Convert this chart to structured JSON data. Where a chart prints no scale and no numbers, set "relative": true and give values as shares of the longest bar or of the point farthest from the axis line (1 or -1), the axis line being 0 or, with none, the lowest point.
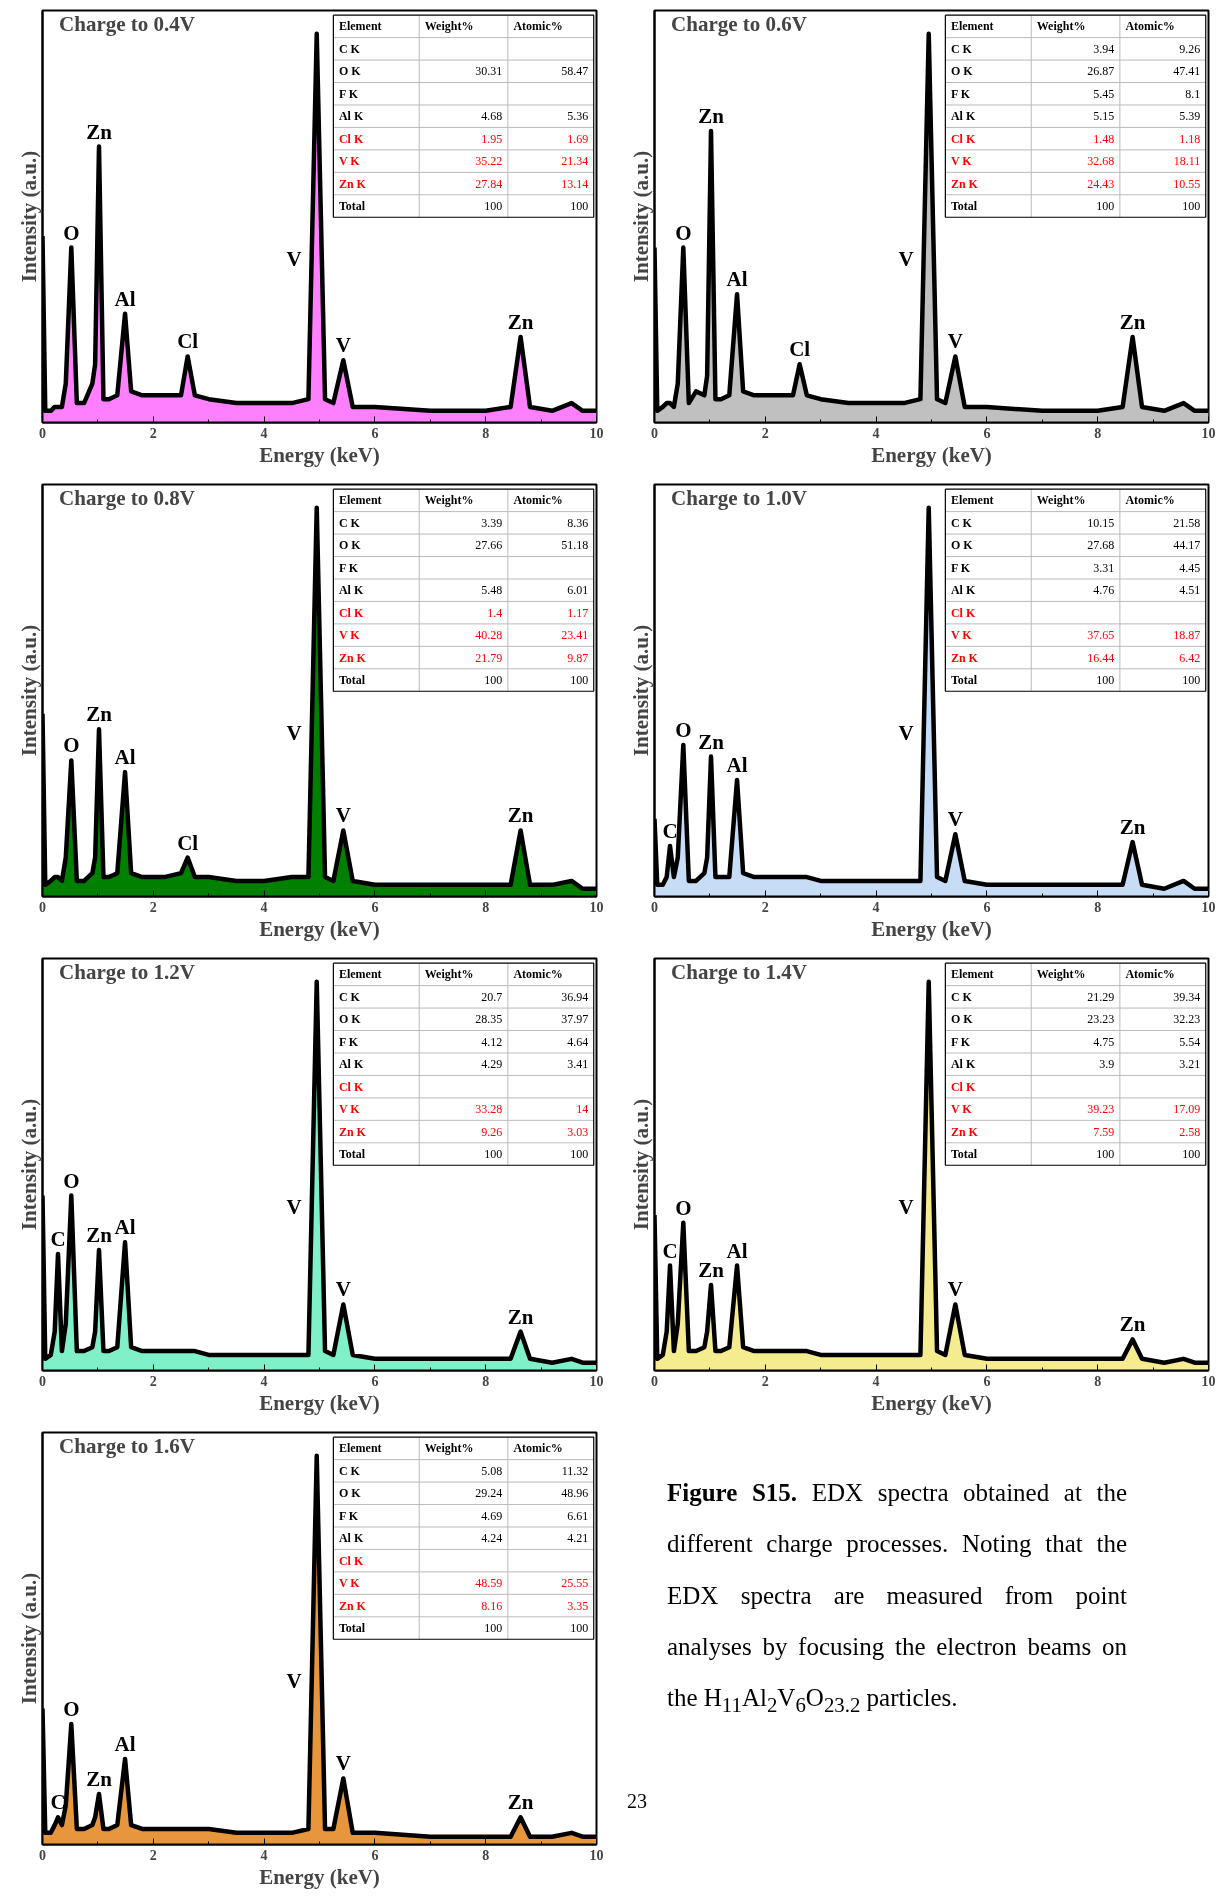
{
  "chart_data": [
    {
      "type": "area",
      "title": "Charge to 0.4V",
      "xlabel": "Energy (keV)",
      "ylabel": "Intensity (a.u.)",
      "relative": true,
      "color": "#ff80ff",
      "xlim": [
        0,
        10
      ],
      "xticks": [
        0,
        2,
        4,
        6,
        8,
        10
      ],
      "x": [
        0,
        0.05,
        0.15,
        0.22,
        0.28,
        0.35,
        0.42,
        0.52,
        0.62,
        0.75,
        0.9,
        0.95,
        1.02,
        1.1,
        1.2,
        1.35,
        1.49,
        1.6,
        1.8,
        2.2,
        2.5,
        2.62,
        2.75,
        3.0,
        3.5,
        4.0,
        4.5,
        4.8,
        4.95,
        5.1,
        5.25,
        5.43,
        5.6,
        6.0,
        7.0,
        8.0,
        8.45,
        8.63,
        8.8,
        9.2,
        9.55,
        9.75,
        10
      ],
      "values": [
        0.48,
        0.03,
        0.03,
        0.04,
        0.04,
        0.04,
        0.1,
        0.45,
        0.05,
        0.05,
        0.1,
        0.15,
        0.71,
        0.06,
        0.06,
        0.07,
        0.28,
        0.08,
        0.07,
        0.07,
        0.07,
        0.17,
        0.07,
        0.06,
        0.05,
        0.05,
        0.05,
        0.06,
        1,
        0.06,
        0.05,
        0.16,
        0.04,
        0.04,
        0.03,
        0.03,
        0.04,
        0.22,
        0.04,
        0.03,
        0.05,
        0.03,
        0.03
      ],
      "annotations": [
        {
          "text": "O",
          "x": 0.52,
          "y": 0.45
        },
        {
          "text": "Zn",
          "x": 1.02,
          "y": 0.71
        },
        {
          "text": "Al",
          "x": 1.49,
          "y": 0.28
        },
        {
          "text": "Cl",
          "x": 2.62,
          "y": 0.17
        },
        {
          "text": "V",
          "x": 4.86,
          "y": 0.42
        },
        {
          "text": "V",
          "x": 5.43,
          "y": 0.16
        },
        {
          "text": "Zn",
          "x": 8.63,
          "y": 0.22
        },
        "Element",
        "Weight%",
        "Atomic%",
        "C K",
        "O K",
        "30.31",
        "58.47",
        "F K",
        "Al K",
        "4.68",
        "5.36",
        "Cl K",
        "1.95",
        "1.69",
        "V K",
        "35.22",
        "21.34",
        "Zn K",
        "27.84",
        "13.14",
        "Total",
        "100",
        "100"
      ]
    },
    {
      "type": "area",
      "title": "Charge to 0.6V",
      "xlabel": "Energy (keV)",
      "ylabel": "Intensity (a.u.)",
      "relative": true,
      "color": "#c0c0c0",
      "xlim": [
        0,
        10
      ],
      "xticks": [
        0,
        2,
        4,
        6,
        8,
        10
      ],
      "x": [
        0,
        0.05,
        0.15,
        0.22,
        0.28,
        0.35,
        0.42,
        0.52,
        0.62,
        0.75,
        0.9,
        0.95,
        1.02,
        1.1,
        1.2,
        1.35,
        1.49,
        1.6,
        1.8,
        2.2,
        2.5,
        2.62,
        2.75,
        3.0,
        3.5,
        4.0,
        4.5,
        4.8,
        4.95,
        5.1,
        5.25,
        5.43,
        5.6,
        6.0,
        7.0,
        8.0,
        8.45,
        8.63,
        8.8,
        9.2,
        9.55,
        9.75,
        10
      ],
      "values": [
        0.45,
        0.03,
        0.04,
        0.05,
        0.05,
        0.04,
        0.1,
        0.45,
        0.05,
        0.08,
        0.07,
        0.12,
        0.75,
        0.06,
        0.06,
        0.07,
        0.33,
        0.08,
        0.07,
        0.07,
        0.07,
        0.15,
        0.07,
        0.06,
        0.05,
        0.05,
        0.05,
        0.06,
        1,
        0.06,
        0.05,
        0.17,
        0.04,
        0.04,
        0.03,
        0.03,
        0.04,
        0.22,
        0.04,
        0.03,
        0.05,
        0.03,
        0.03
      ],
      "annotations": [
        {
          "text": "O",
          "x": 0.52,
          "y": 0.45
        },
        {
          "text": "Zn",
          "x": 1.02,
          "y": 0.75
        },
        {
          "text": "Al",
          "x": 1.49,
          "y": 0.33
        },
        {
          "text": "Cl",
          "x": 2.62,
          "y": 0.15
        },
        {
          "text": "V",
          "x": 4.86,
          "y": 0.42
        },
        {
          "text": "V",
          "x": 5.43,
          "y": 0.17
        },
        {
          "text": "Zn",
          "x": 8.63,
          "y": 0.22
        },
        "Element",
        "Weight%",
        "Atomic%",
        "C K",
        "3.94",
        "9.26",
        "O K",
        "26.87",
        "47.41",
        "F K",
        "5.45",
        "8.1",
        "Al K",
        "5.15",
        "5.39",
        "Cl K",
        "1.48",
        "1.18",
        "V K",
        "32.68",
        "18.11",
        "Zn K",
        "24.43",
        "10.55",
        "Total",
        "100",
        "100"
      ]
    },
    {
      "type": "area",
      "title": "Charge to 0.8V",
      "xlabel": "Energy (keV)",
      "ylabel": "Intensity (a.u.)",
      "relative": true,
      "color": "#008000",
      "xlim": [
        0,
        10
      ],
      "xticks": [
        0,
        2,
        4,
        6,
        8,
        10
      ],
      "x": [
        0,
        0.05,
        0.15,
        0.22,
        0.28,
        0.35,
        0.42,
        0.52,
        0.62,
        0.75,
        0.9,
        0.95,
        1.02,
        1.1,
        1.2,
        1.35,
        1.49,
        1.6,
        1.8,
        2.2,
        2.5,
        2.62,
        2.75,
        3.0,
        3.5,
        4.0,
        4.5,
        4.8,
        4.95,
        5.1,
        5.25,
        5.43,
        5.6,
        6.0,
        7.0,
        8.0,
        8.45,
        8.63,
        8.8,
        9.2,
        9.55,
        9.75,
        10
      ],
      "values": [
        0.47,
        0.03,
        0.04,
        0.05,
        0.05,
        0.04,
        0.1,
        0.35,
        0.04,
        0.04,
        0.06,
        0.1,
        0.43,
        0.05,
        0.05,
        0.06,
        0.32,
        0.06,
        0.05,
        0.05,
        0.06,
        0.1,
        0.05,
        0.05,
        0.04,
        0.04,
        0.05,
        0.05,
        1,
        0.05,
        0.04,
        0.17,
        0.04,
        0.03,
        0.03,
        0.03,
        0.03,
        0.17,
        0.03,
        0.03,
        0.04,
        0.02,
        0.02
      ],
      "annotations": [
        {
          "text": "O",
          "x": 0.52,
          "y": 0.35
        },
        {
          "text": "Zn",
          "x": 1.02,
          "y": 0.43
        },
        {
          "text": "Al",
          "x": 1.49,
          "y": 0.32
        },
        {
          "text": "Cl",
          "x": 2.62,
          "y": 0.1
        },
        {
          "text": "V",
          "x": 4.86,
          "y": 0.42
        },
        {
          "text": "V",
          "x": 5.43,
          "y": 0.17
        },
        {
          "text": "Zn",
          "x": 8.63,
          "y": 0.17
        },
        "Element",
        "Weight%",
        "Atomic%",
        "C K",
        "3.39",
        "8.36",
        "O K",
        "27.66",
        "51.18",
        "F K",
        "Al K",
        "5.48",
        "6.01",
        "Cl K",
        "1.4",
        "1.17",
        "V K",
        "40.28",
        "23.41",
        "Zn K",
        "21.79",
        "9.87",
        "Total",
        "100",
        "100"
      ]
    },
    {
      "type": "area",
      "title": "Charge to 1.0V",
      "xlabel": "Energy (keV)",
      "ylabel": "Intensity (a.u.)",
      "relative": true,
      "color": "#c6dcf7",
      "xlim": [
        0,
        10
      ],
      "xticks": [
        0,
        2,
        4,
        6,
        8,
        10
      ],
      "x": [
        0,
        0.05,
        0.15,
        0.22,
        0.28,
        0.35,
        0.42,
        0.52,
        0.62,
        0.75,
        0.9,
        0.95,
        1.02,
        1.1,
        1.2,
        1.35,
        1.49,
        1.6,
        1.8,
        2.2,
        2.5,
        2.62,
        2.75,
        3.0,
        3.5,
        4.0,
        4.5,
        4.8,
        4.95,
        5.1,
        5.25,
        5.43,
        5.6,
        6.0,
        7.0,
        8.0,
        8.45,
        8.63,
        8.8,
        9.2,
        9.55,
        9.75,
        10
      ],
      "values": [
        0.2,
        0.03,
        0.03,
        0.05,
        0.13,
        0.05,
        0.1,
        0.39,
        0.04,
        0.04,
        0.06,
        0.1,
        0.36,
        0.05,
        0.05,
        0.05,
        0.3,
        0.06,
        0.05,
        0.05,
        0.05,
        0.05,
        0.05,
        0.04,
        0.04,
        0.04,
        0.04,
        0.04,
        1,
        0.05,
        0.04,
        0.16,
        0.04,
        0.03,
        0.03,
        0.03,
        0.03,
        0.14,
        0.03,
        0.02,
        0.04,
        0.02,
        0.02
      ],
      "annotations": [
        {
          "text": "C",
          "x": 0.28,
          "y": 0.13
        },
        {
          "text": "O",
          "x": 0.52,
          "y": 0.39
        },
        {
          "text": "Zn",
          "x": 1.02,
          "y": 0.36
        },
        {
          "text": "Al",
          "x": 1.49,
          "y": 0.3
        },
        {
          "text": "V",
          "x": 4.86,
          "y": 0.42
        },
        {
          "text": "V",
          "x": 5.43,
          "y": 0.16
        },
        {
          "text": "Zn",
          "x": 8.63,
          "y": 0.14
        },
        "Element",
        "Weight%",
        "Atomic%",
        "C K",
        "10.15",
        "21.58",
        "O K",
        "27.68",
        "44.17",
        "F K",
        "3.31",
        "4.45",
        "Al K",
        "4.76",
        "4.51",
        "Cl K",
        "V K",
        "37.65",
        "18.87",
        "Zn K",
        "16.44",
        "6.42",
        "Total",
        "100",
        "100"
      ]
    },
    {
      "type": "area",
      "title": "Charge to 1.2V",
      "xlabel": "Energy (keV)",
      "ylabel": "Intensity (a.u.)",
      "relative": true,
      "color": "#80f0c8",
      "xlim": [
        0,
        10
      ],
      "xticks": [
        0,
        2,
        4,
        6,
        8,
        10
      ],
      "x": [
        0,
        0.05,
        0.15,
        0.22,
        0.28,
        0.35,
        0.42,
        0.52,
        0.62,
        0.75,
        0.9,
        0.95,
        1.02,
        1.1,
        1.2,
        1.35,
        1.49,
        1.6,
        1.8,
        2.2,
        2.5,
        2.62,
        2.75,
        3.0,
        3.5,
        4.0,
        4.5,
        4.8,
        4.95,
        5.1,
        5.25,
        5.43,
        5.6,
        6.0,
        7.0,
        8.0,
        8.45,
        8.63,
        8.8,
        9.2,
        9.55,
        9.75,
        10
      ],
      "values": [
        0.45,
        0.03,
        0.04,
        0.1,
        0.3,
        0.05,
        0.12,
        0.45,
        0.05,
        0.05,
        0.06,
        0.1,
        0.31,
        0.05,
        0.05,
        0.06,
        0.33,
        0.06,
        0.05,
        0.05,
        0.05,
        0.05,
        0.05,
        0.04,
        0.04,
        0.04,
        0.04,
        0.04,
        1,
        0.05,
        0.04,
        0.17,
        0.04,
        0.03,
        0.03,
        0.03,
        0.03,
        0.1,
        0.03,
        0.02,
        0.03,
        0.02,
        0.02
      ],
      "annotations": [
        {
          "text": "C",
          "x": 0.28,
          "y": 0.3
        },
        {
          "text": "O",
          "x": 0.52,
          "y": 0.45
        },
        {
          "text": "Zn",
          "x": 1.02,
          "y": 0.31
        },
        {
          "text": "Al",
          "x": 1.49,
          "y": 0.33
        },
        {
          "text": "V",
          "x": 4.86,
          "y": 0.42
        },
        {
          "text": "V",
          "x": 5.43,
          "y": 0.17
        },
        {
          "text": "Zn",
          "x": 8.63,
          "y": 0.1
        },
        "Element",
        "Weight%",
        "Atomic%",
        "C K",
        "20.7",
        "36.94",
        "O K",
        "28.35",
        "37.97",
        "F K",
        "4.12",
        "4.64",
        "Al K",
        "4.29",
        "3.41",
        "Cl K",
        "V K",
        "33.28",
        "14",
        "Zn K",
        "9.26",
        "3.03",
        "Total",
        "100",
        "100"
      ]
    },
    {
      "type": "area",
      "title": "Charge to 1.4V",
      "xlabel": "Energy (keV)",
      "ylabel": "Intensity (a.u.)",
      "relative": true,
      "color": "#f5ec90",
      "xlim": [
        0,
        10
      ],
      "xticks": [
        0,
        2,
        4,
        6,
        8,
        10
      ],
      "x": [
        0,
        0.05,
        0.15,
        0.22,
        0.28,
        0.35,
        0.42,
        0.52,
        0.62,
        0.75,
        0.9,
        0.95,
        1.02,
        1.1,
        1.2,
        1.35,
        1.49,
        1.6,
        1.8,
        2.2,
        2.5,
        2.62,
        2.75,
        3.0,
        3.5,
        4.0,
        4.5,
        4.8,
        4.95,
        5.1,
        5.25,
        5.43,
        5.6,
        6.0,
        7.0,
        8.0,
        8.45,
        8.63,
        8.8,
        9.2,
        9.55,
        9.75,
        10
      ],
      "values": [
        0.4,
        0.03,
        0.04,
        0.1,
        0.27,
        0.05,
        0.12,
        0.38,
        0.05,
        0.05,
        0.06,
        0.1,
        0.22,
        0.05,
        0.05,
        0.06,
        0.27,
        0.06,
        0.05,
        0.05,
        0.05,
        0.05,
        0.05,
        0.04,
        0.04,
        0.04,
        0.04,
        0.04,
        1,
        0.05,
        0.04,
        0.17,
        0.04,
        0.03,
        0.03,
        0.03,
        0.03,
        0.08,
        0.03,
        0.02,
        0.03,
        0.02,
        0.02
      ],
      "annotations": [
        {
          "text": "C",
          "x": 0.28,
          "y": 0.27
        },
        {
          "text": "O",
          "x": 0.52,
          "y": 0.38
        },
        {
          "text": "Zn",
          "x": 1.02,
          "y": 0.22
        },
        {
          "text": "Al",
          "x": 1.49,
          "y": 0.27
        },
        {
          "text": "V",
          "x": 4.86,
          "y": 0.42
        },
        {
          "text": "V",
          "x": 5.43,
          "y": 0.17
        },
        {
          "text": "Zn",
          "x": 8.63,
          "y": 0.08
        },
        "Element",
        "Weight%",
        "Atomic%",
        "C K",
        "21.29",
        "39.34",
        "O K",
        "23.23",
        "32.23",
        "F K",
        "4.75",
        "5.54",
        "Al K",
        "3.9",
        "3.21",
        "Cl K",
        "V K",
        "39.23",
        "17.09",
        "Zn K",
        "7.59",
        "2.58",
        "Total",
        "100",
        "100"
      ]
    },
    {
      "type": "area",
      "title": "Charge to 1.6V",
      "xlabel": "Energy (keV)",
      "ylabel": "Intensity (a.u.)",
      "relative": true,
      "color": "#e8963c",
      "xlim": [
        0,
        10
      ],
      "xticks": [
        0,
        2,
        4,
        6,
        8,
        10
      ],
      "x": [
        0,
        0.05,
        0.15,
        0.22,
        0.28,
        0.35,
        0.42,
        0.52,
        0.62,
        0.75,
        0.9,
        0.95,
        1.02,
        1.1,
        1.2,
        1.35,
        1.49,
        1.6,
        1.8,
        2.2,
        2.5,
        2.62,
        2.75,
        3.0,
        3.5,
        4.0,
        4.5,
        4.8,
        4.95,
        5.1,
        5.25,
        5.43,
        5.6,
        6.0,
        7.0,
        8.0,
        8.45,
        8.63,
        8.8,
        9.2,
        9.55,
        9.75,
        10
      ],
      "values": [
        0.35,
        0.03,
        0.03,
        0.05,
        0.07,
        0.05,
        0.1,
        0.31,
        0.04,
        0.04,
        0.05,
        0.07,
        0.13,
        0.04,
        0.04,
        0.05,
        0.22,
        0.05,
        0.04,
        0.04,
        0.04,
        0.04,
        0.04,
        0.04,
        0.03,
        0.03,
        0.03,
        0.04,
        1,
        0.04,
        0.04,
        0.17,
        0.03,
        0.03,
        0.02,
        0.02,
        0.02,
        0.07,
        0.02,
        0.02,
        0.03,
        0.02,
        0.02
      ],
      "annotations": [
        {
          "text": "C",
          "x": 0.28,
          "y": 0.07
        },
        {
          "text": "O",
          "x": 0.52,
          "y": 0.31
        },
        {
          "text": "Zn",
          "x": 1.02,
          "y": 0.13
        },
        {
          "text": "Al",
          "x": 1.49,
          "y": 0.22
        },
        {
          "text": "V",
          "x": 4.86,
          "y": 0.42
        },
        {
          "text": "V",
          "x": 5.43,
          "y": 0.17
        },
        {
          "text": "Zn",
          "x": 8.63,
          "y": 0.07
        },
        "Element",
        "Weight%",
        "Atomic%",
        "C K",
        "5.08",
        "11.32",
        "O K",
        "29.24",
        "48.96",
        "F K",
        "4.69",
        "6.61",
        "Al K",
        "4.24",
        "4.21",
        "Cl K",
        "V K",
        "48.59",
        "25.55",
        "Zn K",
        "8.16",
        "3.35",
        "Total",
        "100",
        "100"
      ]
    },
    {
      "type": "other",
      "annotations": [
        "Figure S15.",
        "EDX spectra obtained at the different charge processes. Noting that the EDX spectra are measured from point analyses by focusing the electron beams on the H$_{11}$Al$_{2}$V$_{6}$O$_{23.2}$ particles.",
        "23"
      ]
    }
  ]
}
